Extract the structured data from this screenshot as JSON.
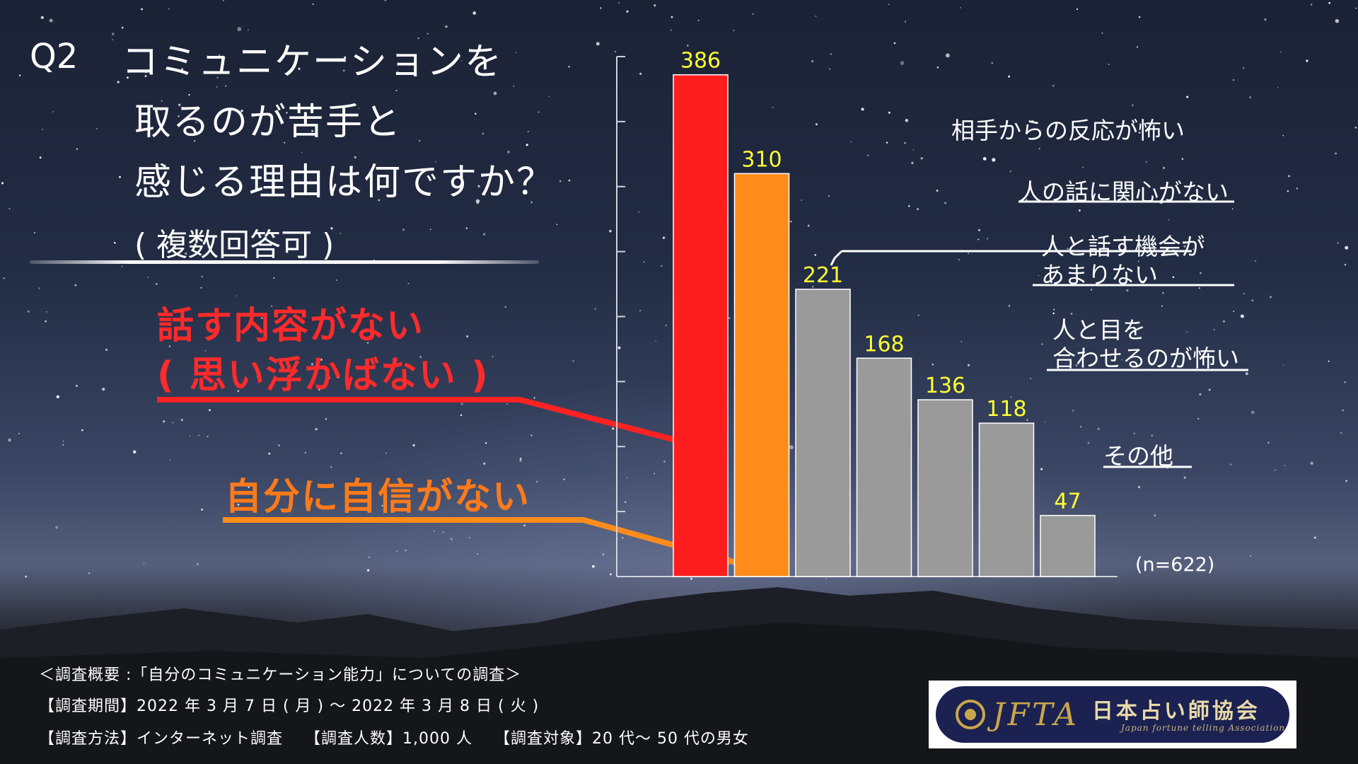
{
  "question": {
    "number": "Q2",
    "lines": [
      "コミュニケーションを",
      "取るのが苦手と",
      "感じる理由は何ですか？"
    ],
    "note": "( 複数回答可 )"
  },
  "callouts": {
    "top_line1": "話す内容がない",
    "top_line2": "( 思い浮かばない )",
    "second": "自分に自信がない"
  },
  "right_labels": {
    "l221": "相手からの反応が怖い",
    "l168": "人の話に関心がない",
    "l136_1": "人と話す機会が",
    "l136_2": "あまりない",
    "l118_1": "人と目を",
    "l118_2": "合わせるのが怖い",
    "l47": "その他"
  },
  "sample_size": "(n=622)",
  "chart_data": {
    "type": "bar",
    "categories": [
      "話す内容がない( 思い浮かばない )",
      "自分に自信がない",
      "相手からの反応が怖い",
      "人の話に関心がない",
      "人と話す機会があまりない",
      "人と目を合わせるのが怖い",
      "その他"
    ],
    "values": [
      386,
      310,
      221,
      168,
      136,
      118,
      47
    ],
    "value_labels": [
      "386",
      "310",
      "221",
      "168",
      "136",
      "118",
      "47"
    ],
    "colors": [
      "#ff1e1e",
      "#ff8c1a",
      "#9a9a9a",
      "#9a9a9a",
      "#9a9a9a",
      "#9a9a9a",
      "#9a9a9a"
    ],
    "label_color": "#ffff33",
    "ylim": [
      0,
      400
    ],
    "grid": false
  },
  "footer": {
    "line1": "＜調査概要 :「自分のコミュニケーション能力」についての調査＞",
    "line2": "【調査期間】2022 年 3 月 7 日 ( 月 ) ～ 2022 年 3 月 8 日 ( 火 )",
    "line3": "【調査方法】インターネット調査　 【調査人数】1,000 人　 【調査対象】20 代～ 50 代の男女"
  },
  "logo": {
    "abbr": "JFTA",
    "name_jp": "日本占い師協会",
    "name_en": "Japan fortune telling Association"
  }
}
